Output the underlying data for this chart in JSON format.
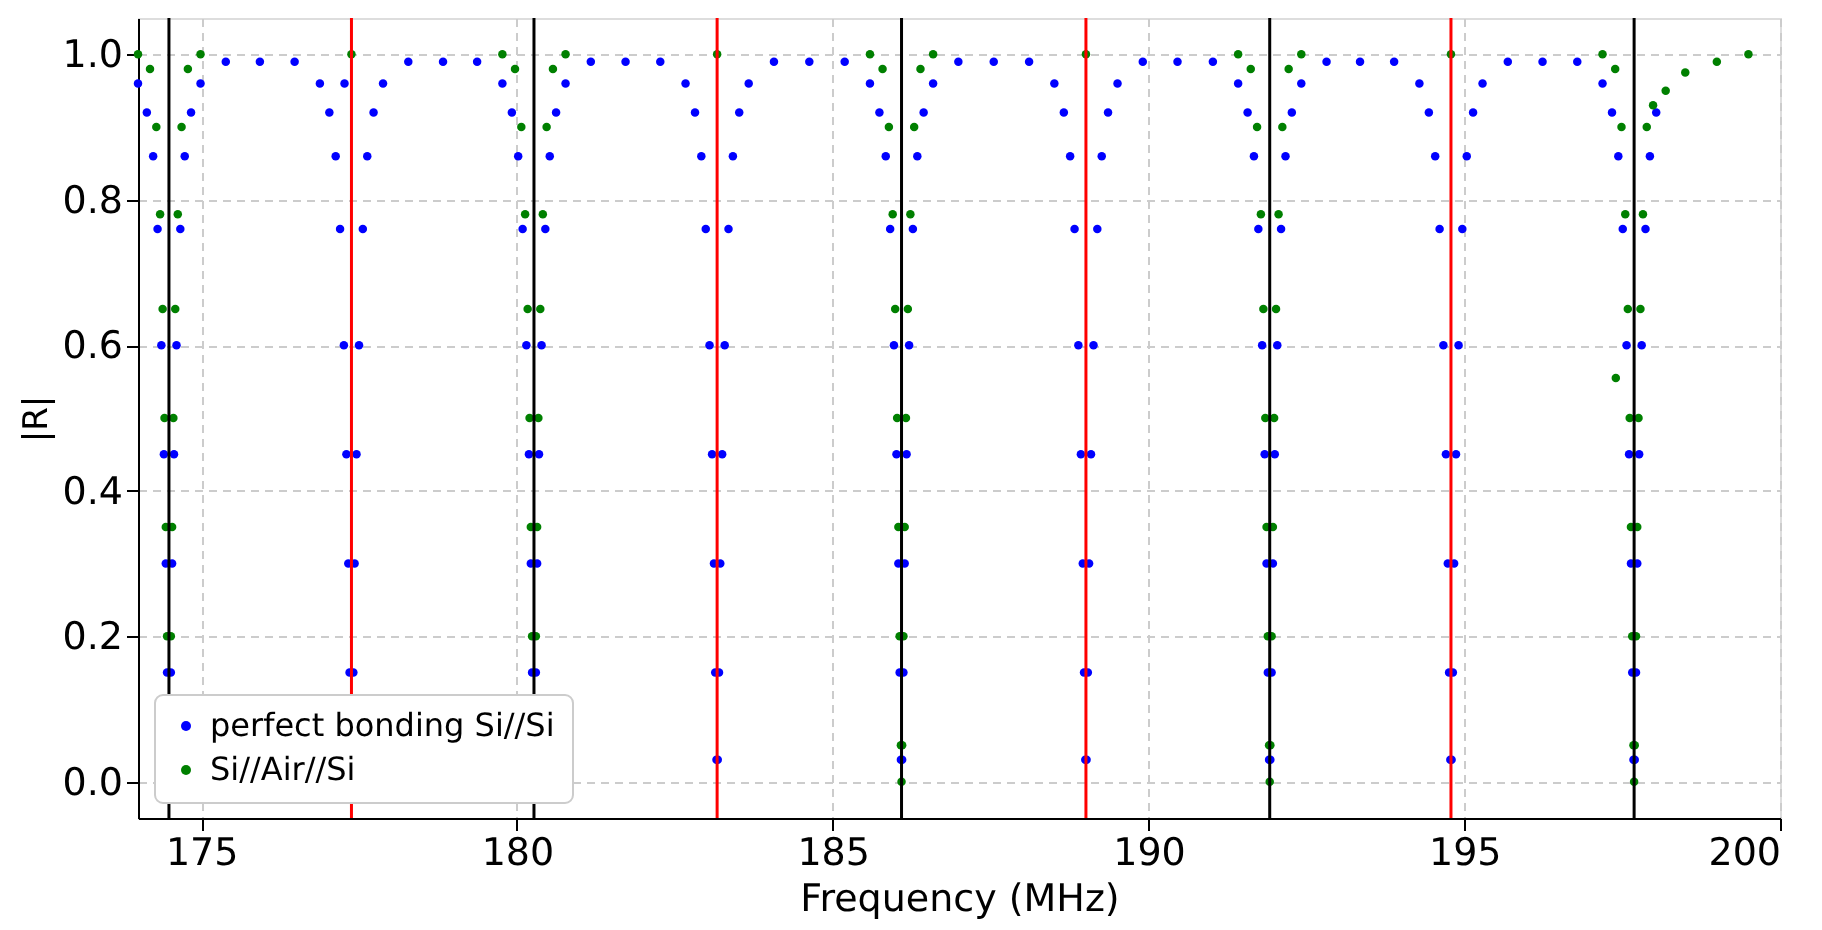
{
  "chart_data": {
    "type": "scatter",
    "xlabel": "Frequency (MHz)",
    "ylabel": "|R|",
    "xlim": [
      174,
      200
    ],
    "ylim": [
      -0.05,
      1.05
    ],
    "xticks": [
      175,
      180,
      185,
      190,
      195,
      200
    ],
    "yticks": [
      {
        "value": 0,
        "label": "0.0"
      },
      {
        "value": 0.2,
        "label": "0.2"
      },
      {
        "value": 0.4,
        "label": "0.4"
      },
      {
        "value": 0.6,
        "label": "0.6"
      },
      {
        "value": 0.8,
        "label": "0.8"
      },
      {
        "value": 1,
        "label": "1.0"
      }
    ],
    "grid": true,
    "legend": "bottom left",
    "marker": "circle",
    "series": [
      {
        "name": "perfect bonding Si//Si",
        "color": "#0000ff",
        "x": [
          174.0,
          174.14,
          174.24,
          174.31,
          174.37,
          174.41,
          174.44,
          174.46,
          174.48,
          174.5,
          174.52,
          174.54,
          174.57,
          174.61,
          174.67,
          174.74,
          174.84,
          174.99,
          175.39,
          175.93,
          176.48,
          176.88,
          177.03,
          177.13,
          177.2,
          177.26,
          177.3,
          177.33,
          177.35,
          177.37,
          177.39,
          177.41,
          177.43,
          177.46,
          177.5,
          177.56,
          177.63,
          177.73,
          177.88,
          178.28,
          178.83,
          179.37,
          179.77,
          179.92,
          180.02,
          180.09,
          180.15,
          180.19,
          180.22,
          180.24,
          180.26,
          180.28,
          180.3,
          180.32,
          180.35,
          180.39,
          180.45,
          180.52,
          180.62,
          180.77,
          181.17,
          181.72,
          182.27,
          182.67,
          182.82,
          182.92,
          182.99,
          183.05,
          183.09,
          183.12,
          183.14,
          183.16,
          183.18,
          183.2,
          183.22,
          183.25,
          183.29,
          183.35,
          183.42,
          183.52,
          183.67,
          184.07,
          184.63,
          185.19,
          185.59,
          185.74,
          185.84,
          185.91,
          185.97,
          186.01,
          186.04,
          186.06,
          186.08,
          186.1,
          186.12,
          186.14,
          186.17,
          186.21,
          186.27,
          186.34,
          186.44,
          186.59,
          186.99,
          187.55,
          188.11,
          188.51,
          188.66,
          188.76,
          188.83,
          188.89,
          188.93,
          188.96,
          188.98,
          189.0,
          189.02,
          189.04,
          189.06,
          189.09,
          189.13,
          189.19,
          189.26,
          189.36,
          189.51,
          189.91,
          190.46,
          191.02,
          191.42,
          191.57,
          191.67,
          191.74,
          191.8,
          191.84,
          191.87,
          191.89,
          191.91,
          191.93,
          191.95,
          191.97,
          192.0,
          192.04,
          192.1,
          192.17,
          192.27,
          192.42,
          192.82,
          193.35,
          193.89,
          194.29,
          194.44,
          194.54,
          194.61,
          194.67,
          194.71,
          194.74,
          194.76,
          194.78,
          194.8,
          194.82,
          194.84,
          194.87,
          194.91,
          194.97,
          195.04,
          195.14,
          195.29,
          195.69,
          196.24,
          196.79,
          197.19,
          197.34,
          197.44,
          197.51,
          197.57,
          197.61,
          197.64,
          197.66,
          197.68,
          197.7,
          197.72,
          197.74,
          197.77,
          197.81,
          197.87,
          197.94,
          198.04,
          177.27
        ],
        "values": [
          0.96,
          0.92,
          0.86,
          0.76,
          0.6,
          0.45,
          0.3,
          0.15,
          null,
          null,
          0.15,
          0.3,
          0.45,
          0.6,
          0.76,
          0.86,
          0.92,
          0.96,
          0.99,
          0.99,
          0.99,
          0.96,
          0.92,
          0.86,
          0.76,
          0.6,
          0.45,
          0.3,
          0.15,
          null,
          null,
          0.15,
          0.3,
          0.45,
          0.6,
          0.76,
          0.86,
          0.92,
          0.96,
          0.99,
          0.99,
          0.99,
          0.96,
          0.92,
          0.86,
          0.76,
          0.6,
          0.45,
          0.3,
          0.15,
          null,
          null,
          0.15,
          0.3,
          0.45,
          0.6,
          0.76,
          0.86,
          0.92,
          0.96,
          0.99,
          0.99,
          0.99,
          0.96,
          0.92,
          0.86,
          0.76,
          0.6,
          0.45,
          0.3,
          0.15,
          0.03,
          0.03,
          0.15,
          0.3,
          0.45,
          0.6,
          0.76,
          0.86,
          0.92,
          0.96,
          0.99,
          0.99,
          0.99,
          0.96,
          0.92,
          0.86,
          0.76,
          0.6,
          0.45,
          0.3,
          0.15,
          0.03,
          0.03,
          0.15,
          0.3,
          0.45,
          0.6,
          0.76,
          0.86,
          0.92,
          0.96,
          0.99,
          0.99,
          0.99,
          0.96,
          0.92,
          0.86,
          0.76,
          0.6,
          0.45,
          0.3,
          0.15,
          0.03,
          0.03,
          0.15,
          0.3,
          0.45,
          0.6,
          0.76,
          0.86,
          0.92,
          0.96,
          0.99,
          0.99,
          0.99,
          0.96,
          0.92,
          0.86,
          0.76,
          0.6,
          0.45,
          0.3,
          0.15,
          0.03,
          0.03,
          0.15,
          0.3,
          0.45,
          0.6,
          0.76,
          0.86,
          0.92,
          0.96,
          0.99,
          0.99,
          0.99,
          0.96,
          0.92,
          0.86,
          0.76,
          0.6,
          0.45,
          0.3,
          0.15,
          0.03,
          0.03,
          0.15,
          0.3,
          0.45,
          0.6,
          0.76,
          0.86,
          0.92,
          0.96,
          0.99,
          0.99,
          0.99,
          0.96,
          0.92,
          0.86,
          0.76,
          0.6,
          0.45,
          0.3,
          0.15,
          0.03,
          0.03,
          0.15,
          0.3,
          0.45,
          0.6,
          0.76,
          0.86,
          0.92,
          0.96
        ]
      },
      {
        "name": "Si//Air//Si",
        "color": "#008000",
        "x": [
          174.0,
          174.19,
          174.29,
          174.35,
          174.39,
          174.42,
          174.44,
          174.46,
          174.48,
          174.49,
          174.5,
          174.52,
          174.54,
          174.56,
          174.59,
          174.63,
          174.69,
          174.79,
          174.99,
          177.38,
          179.77,
          179.97,
          180.07,
          180.13,
          180.17,
          180.2,
          180.22,
          180.24,
          180.26,
          180.27,
          180.28,
          180.3,
          180.32,
          180.34,
          180.37,
          180.41,
          180.47,
          180.57,
          180.77,
          183.17,
          185.59,
          185.79,
          185.89,
          185.95,
          185.99,
          186.02,
          186.04,
          186.06,
          186.08,
          186.09,
          186.1,
          186.12,
          186.14,
          186.16,
          186.19,
          186.23,
          186.29,
          186.39,
          186.59,
          189.01,
          191.42,
          191.62,
          191.72,
          191.78,
          191.82,
          191.85,
          191.87,
          191.89,
          191.91,
          191.92,
          191.93,
          191.95,
          191.97,
          191.99,
          192.02,
          192.06,
          192.12,
          192.22,
          192.42,
          194.79,
          197.19,
          197.39,
          197.49,
          197.55,
          197.59,
          197.62,
          197.64,
          197.66,
          197.68,
          197.69,
          197.7,
          197.72,
          197.74,
          197.76,
          197.79,
          197.83,
          197.89,
          197.99,
          198.19,
          198.5,
          199.0,
          199.5,
          197.4
        ],
        "values": [
          1.0,
          0.98,
          0.9,
          0.78,
          0.65,
          0.5,
          0.35,
          0.2,
          null,
          null,
          null,
          0.2,
          0.35,
          0.5,
          0.65,
          0.78,
          0.9,
          0.98,
          1.0,
          1.0,
          1.0,
          0.98,
          0.9,
          0.78,
          0.65,
          0.5,
          0.35,
          0.2,
          null,
          null,
          null,
          0.2,
          0.35,
          0.5,
          0.65,
          0.78,
          0.9,
          0.98,
          1.0,
          1.0,
          1.0,
          0.98,
          0.9,
          0.78,
          0.65,
          0.5,
          0.35,
          0.2,
          0.05,
          0.0,
          0.05,
          0.2,
          0.35,
          0.5,
          0.65,
          0.78,
          0.9,
          0.98,
          1.0,
          1.0,
          1.0,
          0.98,
          0.9,
          0.78,
          0.65,
          0.5,
          0.35,
          0.2,
          0.05,
          0.0,
          0.05,
          0.2,
          0.35,
          0.5,
          0.65,
          0.78,
          0.9,
          0.98,
          1.0,
          1.0,
          1.0,
          0.98,
          0.9,
          0.78,
          0.65,
          0.5,
          0.35,
          0.2,
          0.05,
          0.0,
          0.05,
          0.2,
          0.35,
          0.5,
          0.65,
          0.78,
          0.9,
          0.93,
          0.95,
          0.975,
          0.99,
          1.0,
          0.555
        ]
      }
    ],
    "ref_lines": [
      {
        "axis": "x",
        "value": 174.49,
        "color": "#000000"
      },
      {
        "axis": "x",
        "value": 180.27,
        "color": "#000000"
      },
      {
        "axis": "x",
        "value": 186.09,
        "color": "#000000"
      },
      {
        "axis": "x",
        "value": 191.92,
        "color": "#000000"
      },
      {
        "axis": "x",
        "value": 197.69,
        "color": "#000000"
      },
      {
        "axis": "x",
        "value": 177.38,
        "color": "#ff0000"
      },
      {
        "axis": "x",
        "value": 183.17,
        "color": "#ff0000"
      },
      {
        "axis": "x",
        "value": 189.01,
        "color": "#ff0000"
      },
      {
        "axis": "x",
        "value": 194.79,
        "color": "#ff0000"
      }
    ]
  }
}
